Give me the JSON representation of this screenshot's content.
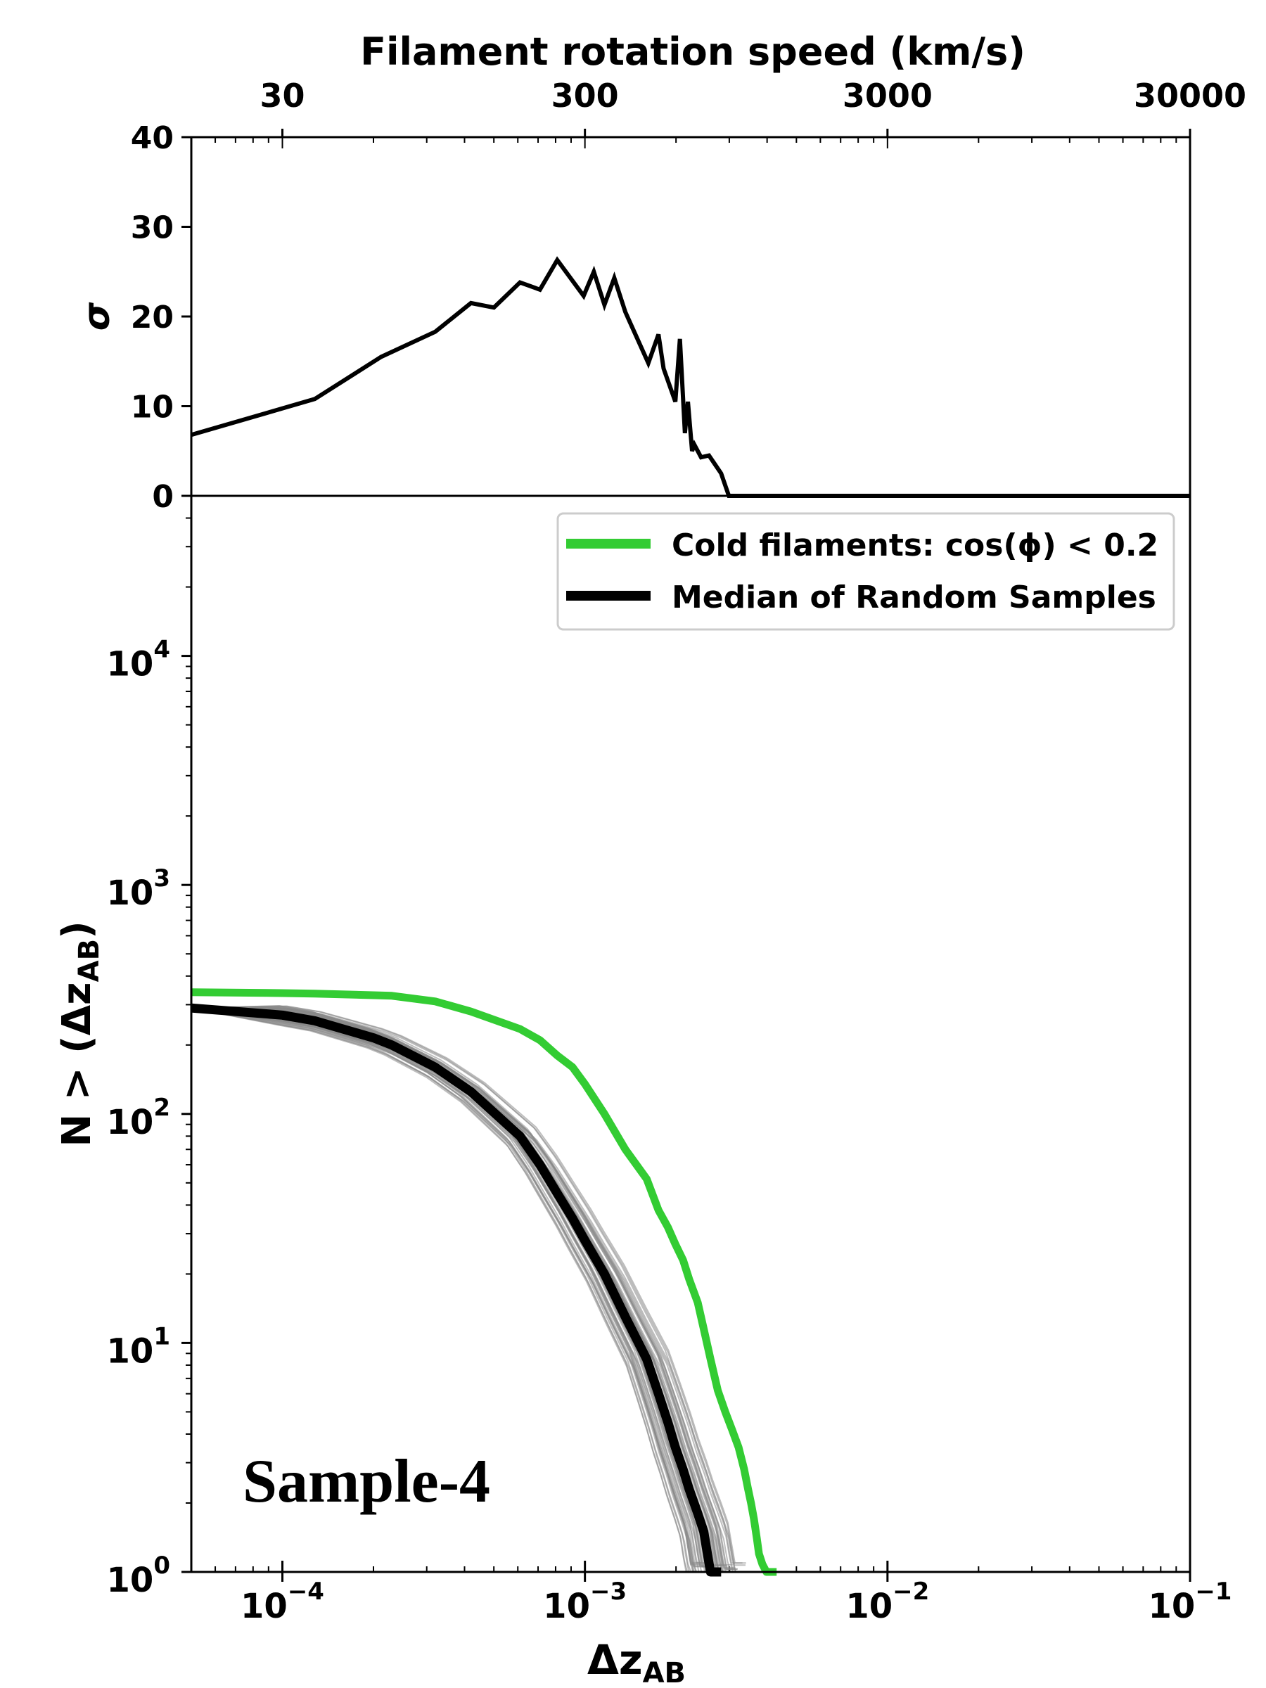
{
  "chart_data": [
    {
      "type": "line",
      "panel": "top",
      "title": "",
      "top_axis_label": "Filament rotation speed (km/s)",
      "top_ticks": [
        {
          "value": 30,
          "label": "30"
        },
        {
          "value": 300,
          "label": "300"
        },
        {
          "value": 3000,
          "label": "3000"
        },
        {
          "value": 30000,
          "label": "30000"
        }
      ],
      "ylabel": "σ",
      "ylim": [
        0,
        40
      ],
      "yticks": [
        {
          "value": 0,
          "label": "0"
        },
        {
          "value": 10,
          "label": "10"
        },
        {
          "value": 20,
          "label": "20"
        },
        {
          "value": 30,
          "label": "30"
        },
        {
          "value": 40,
          "label": "40"
        }
      ],
      "xlim": [
        5e-05,
        0.1
      ],
      "x_scale": "log",
      "series": [
        {
          "name": "sigma",
          "color": "#000000",
          "x": [
            5e-05,
            0.000128,
            0.000212,
            0.00032,
            0.00042,
            0.0005,
            0.00061,
            0.00071,
            0.00081,
            0.00099,
            0.00107,
            0.00116,
            0.00125,
            0.00136,
            0.00162,
            0.00175,
            0.00182,
            0.00199,
            0.00206,
            0.00214,
            0.00219,
            0.00226,
            0.0023,
            0.00242,
            0.00257,
            0.00282,
            0.00299,
            0.00325,
            0.0033,
            0.0037,
            0.05,
            0.1
          ],
          "y": [
            6.8,
            10.8,
            15.5,
            18.3,
            21.5,
            21.0,
            23.8,
            23.0,
            26.3,
            22.3,
            25.0,
            21.3,
            24.3,
            20.5,
            14.8,
            18.0,
            14.2,
            10.5,
            17.5,
            7.0,
            10.5,
            5.0,
            5.7,
            4.3,
            4.5,
            2.5,
            0.0,
            0.0,
            0.0,
            0.0,
            0.0,
            0.0
          ]
        }
      ]
    },
    {
      "type": "line",
      "panel": "bottom",
      "xlabel": "Δz",
      "xlabel_sub": "AB",
      "ylabel": "N > (Δz",
      "ylabel_sub": "AB",
      "ylabel_end": ")",
      "x_scale": "log",
      "y_scale": "log",
      "xlim": [
        5e-05,
        0.1
      ],
      "ylim": [
        1,
        50000
      ],
      "xticks": [
        {
          "value": 0.0001,
          "base": "10",
          "exp": "−4"
        },
        {
          "value": 0.001,
          "base": "10",
          "exp": "−3"
        },
        {
          "value": 0.01,
          "base": "10",
          "exp": "−2"
        },
        {
          "value": 0.1,
          "base": "10",
          "exp": "−1"
        }
      ],
      "yticks": [
        {
          "value": 1,
          "base": "10",
          "exp": "0"
        },
        {
          "value": 10,
          "base": "10",
          "exp": "1"
        },
        {
          "value": 100,
          "base": "10",
          "exp": "2"
        },
        {
          "value": 1000,
          "base": "10",
          "exp": "3"
        },
        {
          "value": 10000,
          "base": "10",
          "exp": "4"
        }
      ],
      "annotation": "Sample-4",
      "legend_position": "top-right",
      "series": [
        {
          "name": "Cold filaments: cos(ϕ) < 0.2",
          "color": "#33cc33",
          "x": [
            5e-05,
            0.0001,
            0.000128,
            0.0002,
            0.00023,
            0.00032,
            0.00042,
            0.00061,
            0.00071,
            0.00081,
            0.00091,
            0.001,
            0.00116,
            0.00136,
            0.0016,
            0.00175,
            0.00188,
            0.00199,
            0.00211,
            0.00221,
            0.00236,
            0.00247,
            0.0026,
            0.00275,
            0.00291,
            0.00306,
            0.00322,
            0.00336,
            0.00346,
            0.00354,
            0.00362,
            0.0037,
            0.00376,
            0.00386,
            0.00398,
            0.00412,
            0.0043
          ],
          "y": [
            340,
            337,
            335,
            330,
            328,
            310,
            280,
            235,
            210,
            180,
            160,
            135,
            100,
            70,
            52,
            38,
            32,
            27,
            23,
            19,
            15,
            11.5,
            8.5,
            6.2,
            5.0,
            4.2,
            3.5,
            2.8,
            2.3,
            2.0,
            1.7,
            1.4,
            1.2,
            1.08,
            1.0,
            1.0,
            1.0
          ]
        },
        {
          "name": "Median of Random Samples",
          "color": "#000000",
          "x": [
            5e-05,
            0.0001,
            0.000128,
            0.0002,
            0.00023,
            0.00032,
            0.00042,
            0.00061,
            0.00071,
            0.00081,
            0.00091,
            0.001,
            0.00116,
            0.00136,
            0.0016,
            0.00175,
            0.00188,
            0.00199,
            0.00211,
            0.00221,
            0.00236,
            0.00247,
            0.00254,
            0.0026,
            0.00282
          ],
          "y": [
            290,
            270,
            255,
            215,
            200,
            160,
            125,
            80,
            60,
            45,
            35,
            28,
            20,
            13,
            8.5,
            6.0,
            4.5,
            3.5,
            2.8,
            2.3,
            1.8,
            1.5,
            1.2,
            1.0,
            1.0
          ]
        }
      ]
    }
  ]
}
